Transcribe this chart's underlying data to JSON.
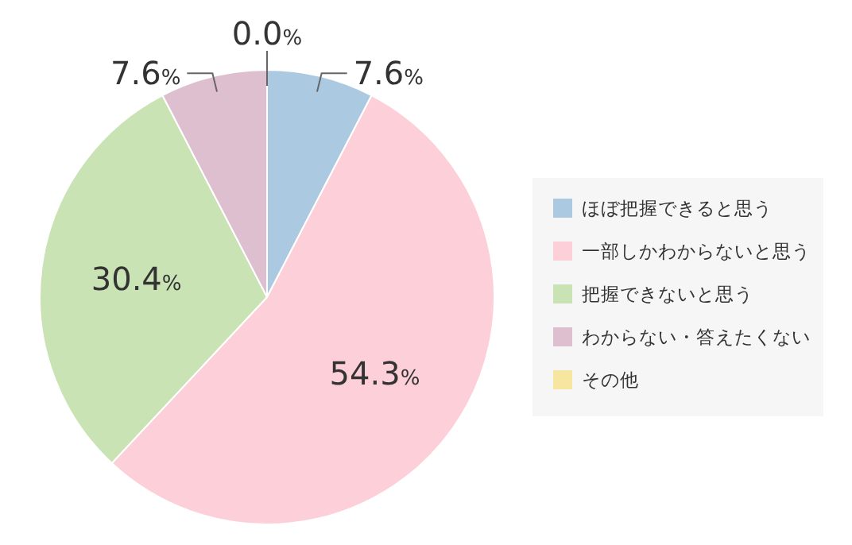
{
  "chart_data": {
    "type": "pie",
    "categories": [
      "ほぼ把握できると思う",
      "一部しかわからないと思う",
      "把握できないと思う",
      "わからない・答えたくない",
      "その他"
    ],
    "values": [
      7.6,
      54.3,
      30.4,
      7.6,
      0.0
    ],
    "colors": [
      "#abcae2",
      "#fdd0d9",
      "#c9e3b5",
      "#ddbfd0",
      "#f7e6a0"
    ],
    "value_labels": [
      "7.6%",
      "54.3%",
      "30.4%",
      "7.6%",
      "0.0%"
    ],
    "legend": "right"
  }
}
